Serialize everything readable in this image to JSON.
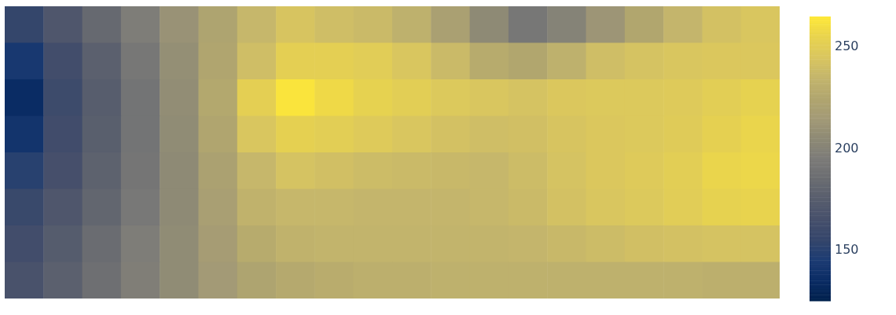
{
  "chart_data": {
    "type": "heatmap",
    "categories": [
      null,
      null,
      null,
      null,
      null,
      null,
      null,
      null,
      null,
      null,
      null,
      null,
      null,
      null,
      null,
      null,
      null,
      null,
      null,
      null
    ],
    "y_categories": [
      null,
      null,
      null,
      null,
      null,
      null,
      null,
      null
    ],
    "cells": [
      [
        155,
        170,
        183,
        196,
        210,
        223,
        236,
        244,
        240,
        238,
        232,
        220,
        205,
        192,
        200,
        212,
        225,
        235,
        242,
        245
      ],
      [
        143,
        163,
        177,
        192,
        208,
        224,
        240,
        252,
        252,
        250,
        245,
        238,
        228,
        225,
        232,
        240,
        243,
        245,
        246,
        246
      ],
      [
        135,
        160,
        175,
        190,
        207,
        226,
        252,
        263,
        258,
        254,
        251,
        247,
        245,
        243,
        246,
        247,
        247,
        248,
        251,
        254
      ],
      [
        140,
        162,
        176,
        190,
        206,
        224,
        245,
        253,
        251,
        248,
        245,
        242,
        240,
        241,
        244,
        246,
        247,
        249,
        253,
        256
      ],
      [
        150,
        165,
        178,
        191,
        205,
        221,
        236,
        243,
        241,
        239,
        238,
        237,
        236,
        239,
        243,
        246,
        248,
        251,
        256,
        257
      ],
      [
        158,
        170,
        181,
        193,
        205,
        219,
        233,
        236,
        236,
        235,
        235,
        235,
        236,
        238,
        242,
        245,
        247,
        250,
        254,
        255
      ],
      [
        163,
        174,
        185,
        196,
        206,
        217,
        228,
        233,
        234,
        234,
        234,
        234,
        234,
        235,
        237,
        239,
        241,
        242,
        243,
        243
      ],
      [
        167,
        177,
        187,
        197,
        206,
        215,
        223,
        227,
        229,
        231,
        231,
        232,
        232,
        232,
        232,
        232,
        232,
        232,
        231,
        231
      ]
    ],
    "clim": [
      125,
      265
    ],
    "cticks": [
      150,
      200,
      250
    ],
    "tick_labels": false
  }
}
